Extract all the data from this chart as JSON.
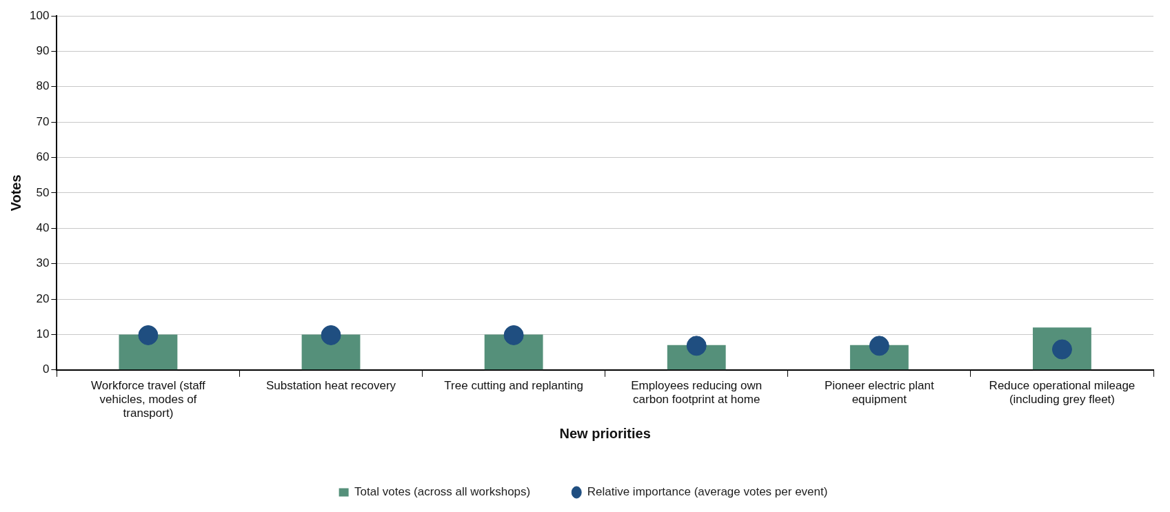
{
  "chart_data": {
    "type": "bar",
    "xlabel": "New priorities",
    "ylabel": "Votes",
    "categories": [
      "Workforce travel (staff vehicles, modes of transport)",
      "Substation heat recovery",
      "Tree cutting and replanting",
      "Employees reducing own carbon footprint at home",
      "Pioneer electric plant equipment",
      "Reduce operational mileage (including grey fleet)"
    ],
    "series": [
      {
        "name": "Total votes (across all workshops)",
        "color": "#55907a",
        "values": [
          10,
          10,
          10,
          7,
          7,
          12
        ]
      },
      {
        "name": "Relative importance (average votes per event)",
        "type": "scatter",
        "color": "#1f4e80",
        "x": [
          "Workforce travel (staff vehicles, modes of transport)",
          "Substation heat recovery",
          "Tree cutting and replanting",
          "Employees reducing own carbon footprint at home",
          "Pioneer electric plant equipment",
          "Reduce operational mileage (including grey fleet)"
        ],
        "values": [
          9.8,
          9.8,
          9.8,
          6.8,
          6.8,
          5.8
        ],
        "marker": "circle"
      }
    ],
    "ylim": [
      0,
      100
    ],
    "yticks": [
      0,
      10,
      20,
      30,
      40,
      50,
      60,
      70,
      80,
      90,
      100
    ],
    "grid": "y",
    "legend": "bottom"
  }
}
